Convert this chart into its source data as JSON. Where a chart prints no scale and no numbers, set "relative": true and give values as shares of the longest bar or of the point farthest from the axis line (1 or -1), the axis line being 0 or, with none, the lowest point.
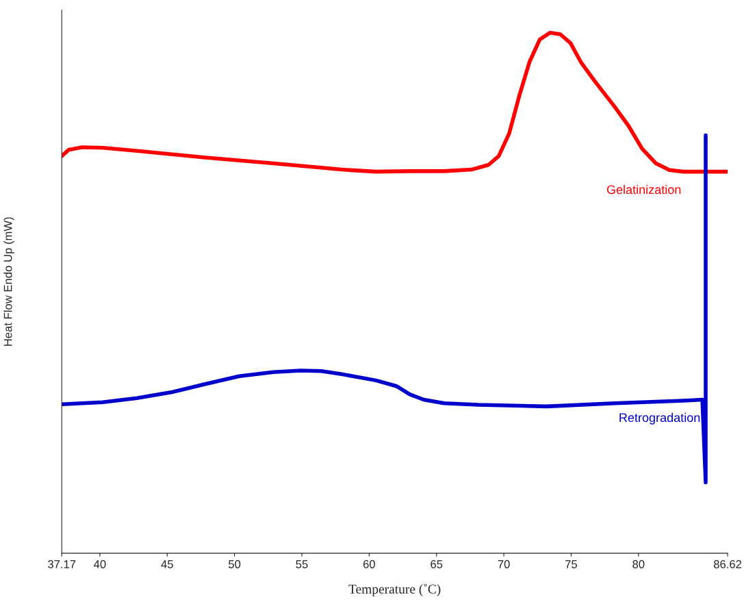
{
  "chart_data": {
    "type": "line",
    "relative": true,
    "xlabel": "Temperature (˚C)",
    "ylabel": "Heat Flow Endo Up (mW)",
    "xlim": [
      37.17,
      86.62
    ],
    "xticks": [
      37.17,
      40,
      45,
      50,
      55,
      60,
      65,
      70,
      75,
      80,
      86.62
    ],
    "grid": false,
    "legend": false,
    "series": [
      {
        "name": "Gelatinization",
        "color": "#ff0000",
        "x": [
          37.17,
          37.68,
          38.69,
          40.21,
          42.75,
          47.82,
          52.89,
          57.96,
          60.5,
          63.03,
          65.57,
          67.6,
          68.86,
          69.62,
          70.39,
          71.15,
          71.91,
          72.67,
          73.43,
          74.19,
          74.95,
          75.71,
          76.72,
          78.25,
          79.26,
          80.27,
          81.29,
          82.3,
          83.32,
          84.99,
          86.62
        ],
        "values": [
          0.763,
          0.775,
          0.78,
          0.779,
          0.773,
          0.76,
          0.749,
          0.737,
          0.733,
          0.734,
          0.734,
          0.737,
          0.746,
          0.763,
          0.806,
          0.879,
          0.944,
          0.987,
          1.0,
          0.997,
          0.98,
          0.944,
          0.908,
          0.857,
          0.821,
          0.777,
          0.749,
          0.736,
          0.733,
          0.733,
          0.733
        ]
      },
      {
        "name": "Retrogradation",
        "color": "#0000cc",
        "x": [
          37.17,
          40.21,
          42.75,
          45.28,
          47.82,
          50.35,
          52.89,
          54.92,
          56.44,
          57.96,
          60.5,
          62.02,
          63.03,
          64.05,
          65.57,
          68.1,
          73.17,
          78.25,
          83.32,
          84.74,
          84.99,
          84.99
        ],
        "values": [
          0.286,
          0.29,
          0.298,
          0.309,
          0.325,
          0.34,
          0.348,
          0.351,
          0.35,
          0.344,
          0.332,
          0.321,
          0.305,
          0.295,
          0.288,
          0.285,
          0.282,
          0.288,
          0.293,
          0.295,
          0.136,
          0.803
        ]
      }
    ]
  }
}
